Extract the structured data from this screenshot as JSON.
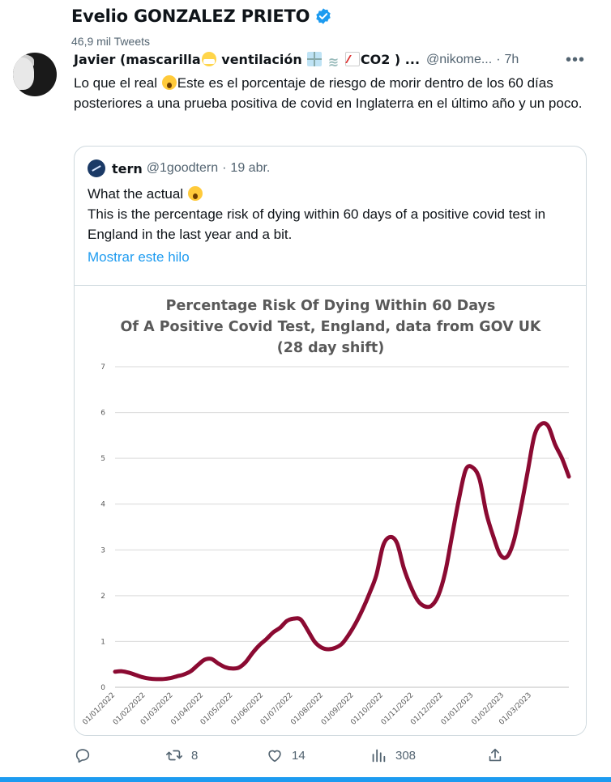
{
  "profile": {
    "name": "Evelio GONZALEZ PRIETO",
    "tweet_count": "46,9 mil Tweets"
  },
  "tweet": {
    "author_name_a": "Javier (mascarilla",
    "author_name_b": " ventilación",
    "author_name_c": "CO2 ) ...",
    "handle": "@nikome...",
    "separator": "·",
    "time": "7h",
    "more_label": "•••",
    "text_a": "Lo que el real ",
    "text_b": "Este es el porcentaje de riesgo de morir dentro de los 60 días posteriores a una prueba positiva de covid en Inglaterra en el último año y un poco."
  },
  "quote": {
    "name": "tern",
    "handle": "@1goodtern",
    "separator": "·",
    "date": "19 abr.",
    "line1": "What the actual ",
    "line2": "This is the percentage risk of dying within 60 days of a positive covid test in England in the last year and a bit.",
    "show_thread": "Mostrar este hilo"
  },
  "chart_data": {
    "type": "line",
    "title": "Percentage Risk Of Dying Within 60 Days",
    "subtitle": "Of A Positive Covid Test, England, data from GOV UK",
    "subtitle2": "(28 day shift)",
    "xlabel": "",
    "ylabel": "",
    "ylim": [
      0,
      7
    ],
    "yticks": [
      "0",
      "1",
      "2",
      "3",
      "4",
      "5",
      "6",
      "7"
    ],
    "xticks": [
      "01/01/2022",
      "01/02/2022",
      "01/03/2022",
      "01/04/2022",
      "01/05/2022",
      "01/06/2022",
      "01/07/2022",
      "01/08/2022",
      "01/09/2022",
      "01/10/2022",
      "01/11/2022",
      "01/12/2022",
      "01/01/2023",
      "01/02/2023",
      "01/03/2023"
    ],
    "grid": true,
    "line_color": "#8b0a32",
    "series": [
      {
        "x": [
          "2022-01-01",
          "2022-01-08",
          "2022-01-15",
          "2022-01-22",
          "2022-01-29",
          "2022-02-05",
          "2022-02-12",
          "2022-02-19",
          "2022-02-26",
          "2022-03-05",
          "2022-03-12",
          "2022-03-19",
          "2022-03-26",
          "2022-04-02",
          "2022-04-09",
          "2022-04-16",
          "2022-04-23",
          "2022-04-30",
          "2022-05-07",
          "2022-05-14",
          "2022-05-21",
          "2022-05-28",
          "2022-06-04",
          "2022-06-11",
          "2022-06-18",
          "2022-06-25",
          "2022-07-02",
          "2022-07-09",
          "2022-07-16",
          "2022-07-23",
          "2022-07-30",
          "2022-08-06",
          "2022-08-13",
          "2022-08-20",
          "2022-08-27",
          "2022-09-03",
          "2022-09-10",
          "2022-09-17",
          "2022-09-24",
          "2022-10-01",
          "2022-10-08",
          "2022-10-15",
          "2022-10-22",
          "2022-10-29",
          "2022-11-05",
          "2022-11-12",
          "2022-11-19",
          "2022-11-26",
          "2022-12-03",
          "2022-12-10",
          "2022-12-17",
          "2022-12-24",
          "2022-12-31",
          "2023-01-07",
          "2023-01-14",
          "2023-01-21",
          "2023-01-28",
          "2023-02-04",
          "2023-02-11",
          "2023-02-18",
          "2023-02-25",
          "2023-03-04",
          "2023-03-11",
          "2023-03-18",
          "2023-03-25",
          "2023-04-01",
          "2023-04-08"
        ],
        "values": [
          0.34,
          0.35,
          0.32,
          0.27,
          0.22,
          0.19,
          0.18,
          0.18,
          0.2,
          0.24,
          0.28,
          0.35,
          0.48,
          0.6,
          0.62,
          0.52,
          0.44,
          0.41,
          0.43,
          0.55,
          0.75,
          0.92,
          1.05,
          1.2,
          1.3,
          1.45,
          1.5,
          1.48,
          1.25,
          1.0,
          0.87,
          0.83,
          0.86,
          0.95,
          1.15,
          1.4,
          1.7,
          2.05,
          2.45,
          3.1,
          3.28,
          3.15,
          2.6,
          2.2,
          1.9,
          1.77,
          1.78,
          2.0,
          2.5,
          3.3,
          4.1,
          4.75,
          4.8,
          4.55,
          3.8,
          3.3,
          2.9,
          2.85,
          3.2,
          3.9,
          4.7,
          5.5,
          5.75,
          5.7,
          5.3,
          5.0,
          4.6
        ]
      }
    ]
  },
  "actions": {
    "reply_count": "",
    "retweet_count": "8",
    "like_count": "14",
    "views_count": "308"
  },
  "colors": {
    "accent": "#1d9bf0",
    "muted": "#536471",
    "line": "#8b0a32"
  }
}
